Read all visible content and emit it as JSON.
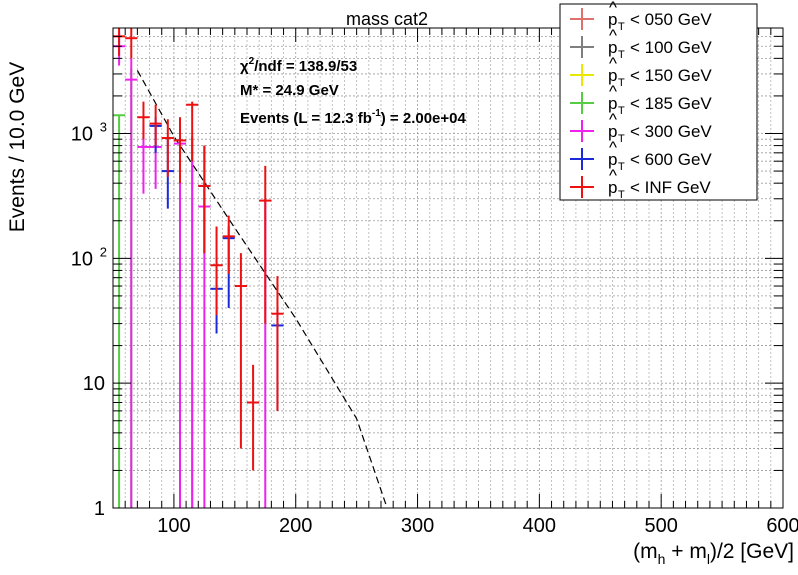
{
  "chart_data": {
    "type": "scatter",
    "title": "mass cat2",
    "xlabel_main": "(m",
    "xlabel_sub1": "h",
    "xlabel_mid": " + m",
    "xlabel_sub2": "l",
    "xlabel_end": ")/2 [GeV]",
    "ylabel": "Events / 10.0 GeV",
    "xlim": [
      50,
      600
    ],
    "ylim": [
      1,
      7000
    ],
    "y_scale": "log",
    "grid": true,
    "x_ticks": [
      {
        "value": 100,
        "label": "100"
      },
      {
        "value": 200,
        "label": "200"
      },
      {
        "value": 300,
        "label": "300"
      },
      {
        "value": 400,
        "label": "400"
      },
      {
        "value": 500,
        "label": "500"
      },
      {
        "value": 600,
        "label": "600"
      }
    ],
    "y_ticks": [
      {
        "value": 1,
        "label": "1"
      },
      {
        "value": 10,
        "label": "10"
      },
      {
        "value": 100,
        "label": "10",
        "sup": "2"
      },
      {
        "value": 1000,
        "label": "10",
        "sup": "3"
      }
    ],
    "fit": {
      "style": "dashed",
      "color": "#000000",
      "points": [
        [
          70,
          3200
        ],
        [
          100,
          950
        ],
        [
          150,
          175
        ],
        [
          200,
          33
        ],
        [
          250,
          5.2
        ],
        [
          275,
          1
        ]
      ]
    },
    "stats": {
      "chi2_pre": "χ",
      "chi2_sup": "2",
      "chi2_post": "/ndf = 138.9/53",
      "mstar": "M* = 24.9 GeV",
      "events_pre": "Events (L = 12.3 fb",
      "events_sup": "-1",
      "events_post": ") = 2.00e+04"
    },
    "legend_position": "top-right",
    "series": [
      {
        "name": "< 050 GeV",
        "color": "#e0706a",
        "points": []
      },
      {
        "name": "< 100 GeV",
        "color": "#7f7f7f",
        "points": []
      },
      {
        "name": "< 150 GeV",
        "color": "#e8e800",
        "points": []
      },
      {
        "name": "< 185 GeV",
        "color": "#55cc44",
        "points": [
          {
            "x": 55,
            "y": 1400,
            "lo": 1,
            "hi": 1400
          },
          {
            "x": 65,
            "y": 1,
            "lo": 1,
            "hi": 3300
          },
          {
            "x": 115,
            "y": 1,
            "lo": 1,
            "hi": 950
          }
        ]
      },
      {
        "name": "< 300 GeV",
        "color": "#ee22ee",
        "points": [
          {
            "x": 55,
            "y": 5000,
            "lo": 3500,
            "hi": 6500
          },
          {
            "x": 65,
            "y": 2700,
            "lo": 1,
            "hi": 4000
          },
          {
            "x": 75,
            "y": 780,
            "lo": 330,
            "hi": 1200
          },
          {
            "x": 85,
            "y": 780,
            "lo": 360,
            "hi": 1200
          },
          {
            "x": 105,
            "y": 830,
            "lo": 1,
            "hi": 1100
          },
          {
            "x": 115,
            "y": 1,
            "lo": 1,
            "hi": 900
          },
          {
            "x": 125,
            "y": 260,
            "lo": 1,
            "hi": 400
          },
          {
            "x": 175,
            "y": 1,
            "lo": 1,
            "hi": 300
          }
        ]
      },
      {
        "name": "< 600 GeV",
        "color": "#1a2ad8",
        "points": [
          {
            "x": 85,
            "y": 1150,
            "lo": 700,
            "hi": 1350
          },
          {
            "x": 95,
            "y": 500,
            "lo": 250,
            "hi": 900
          },
          {
            "x": 125,
            "y": 380,
            "lo": 110,
            "hi": 800
          },
          {
            "x": 135,
            "y": 57,
            "lo": 25,
            "hi": 85
          },
          {
            "x": 145,
            "y": 145,
            "lo": 40,
            "hi": 180
          },
          {
            "x": 185,
            "y": 29,
            "lo": 6,
            "hi": 40
          }
        ]
      },
      {
        "name": "< INF GeV",
        "color": "#ee1111",
        "points": [
          {
            "x": 55,
            "y": 6000,
            "lo": 4200,
            "hi": 7000
          },
          {
            "x": 65,
            "y": 5800,
            "lo": 4000,
            "hi": 7000
          },
          {
            "x": 75,
            "y": 1350,
            "lo": 900,
            "hi": 1800
          },
          {
            "x": 85,
            "y": 1200,
            "lo": 800,
            "hi": 1700
          },
          {
            "x": 95,
            "y": 920,
            "lo": 450,
            "hi": 1300
          },
          {
            "x": 105,
            "y": 880,
            "lo": 400,
            "hi": 1350
          },
          {
            "x": 115,
            "y": 1700,
            "lo": 600,
            "hi": 1800
          },
          {
            "x": 125,
            "y": 380,
            "lo": 110,
            "hi": 800
          },
          {
            "x": 135,
            "y": 88,
            "lo": 35,
            "hi": 180
          },
          {
            "x": 145,
            "y": 150,
            "lo": 75,
            "hi": 220
          },
          {
            "x": 155,
            "y": 60,
            "lo": 3,
            "hi": 110
          },
          {
            "x": 165,
            "y": 7,
            "lo": 2,
            "hi": 14
          },
          {
            "x": 175,
            "y": 290,
            "lo": 30,
            "hi": 550
          },
          {
            "x": 185,
            "y": 36,
            "lo": 6,
            "hi": 72
          }
        ]
      }
    ]
  }
}
